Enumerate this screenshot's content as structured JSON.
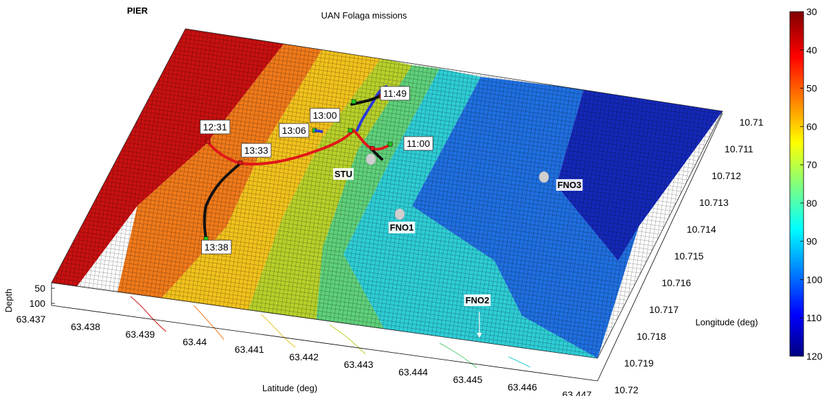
{
  "chart_data": {
    "type": "surface3d",
    "title": "UAN Folaga missions",
    "xlabel": "Latitude (deg)",
    "ylabel": "Longitude (deg)",
    "zlabel": "Depth",
    "x_ticks": [
      "63.437",
      "63.438",
      "63.439",
      "63.44",
      "63.441",
      "63.442",
      "63.443",
      "63.444",
      "63.445",
      "63.446",
      "63.447"
    ],
    "y_ticks": [
      "10.71",
      "10.711",
      "10.712",
      "10.713",
      "10.714",
      "10.715",
      "10.716",
      "10.717",
      "10.718",
      "10.719",
      "10.72"
    ],
    "z_ticks": [
      "50",
      "100"
    ],
    "colorbar": {
      "ticks": [
        "30",
        "40",
        "50",
        "60",
        "70",
        "80",
        "90",
        "100",
        "110",
        "120"
      ],
      "range": [
        30,
        120
      ],
      "colormap": "jet"
    },
    "depth_bands": [
      {
        "depth": 35,
        "color": "#c81010"
      },
      {
        "depth": 50,
        "color": "#f07a1a"
      },
      {
        "depth": 65,
        "color": "#f2c21c"
      },
      {
        "depth": 75,
        "color": "#b8d02a"
      },
      {
        "depth": 83,
        "color": "#5fd07a"
      },
      {
        "depth": 92,
        "color": "#2ecdd6"
      },
      {
        "depth": 103,
        "color": "#1f6fe0"
      },
      {
        "depth": 115,
        "color": "#1428b8"
      }
    ],
    "sites": [
      {
        "name": "PIER"
      },
      {
        "name": "STU"
      },
      {
        "name": "FNO1"
      },
      {
        "name": "FNO2"
      },
      {
        "name": "FNO3"
      }
    ],
    "time_labels": [
      "11:49",
      "13:00",
      "13:06",
      "12:31",
      "13:33",
      "11:00",
      "13:38"
    ],
    "tracks": [
      {
        "color": "#2a3ad8"
      },
      {
        "color": "#e01818"
      },
      {
        "color": "#111111"
      }
    ]
  }
}
